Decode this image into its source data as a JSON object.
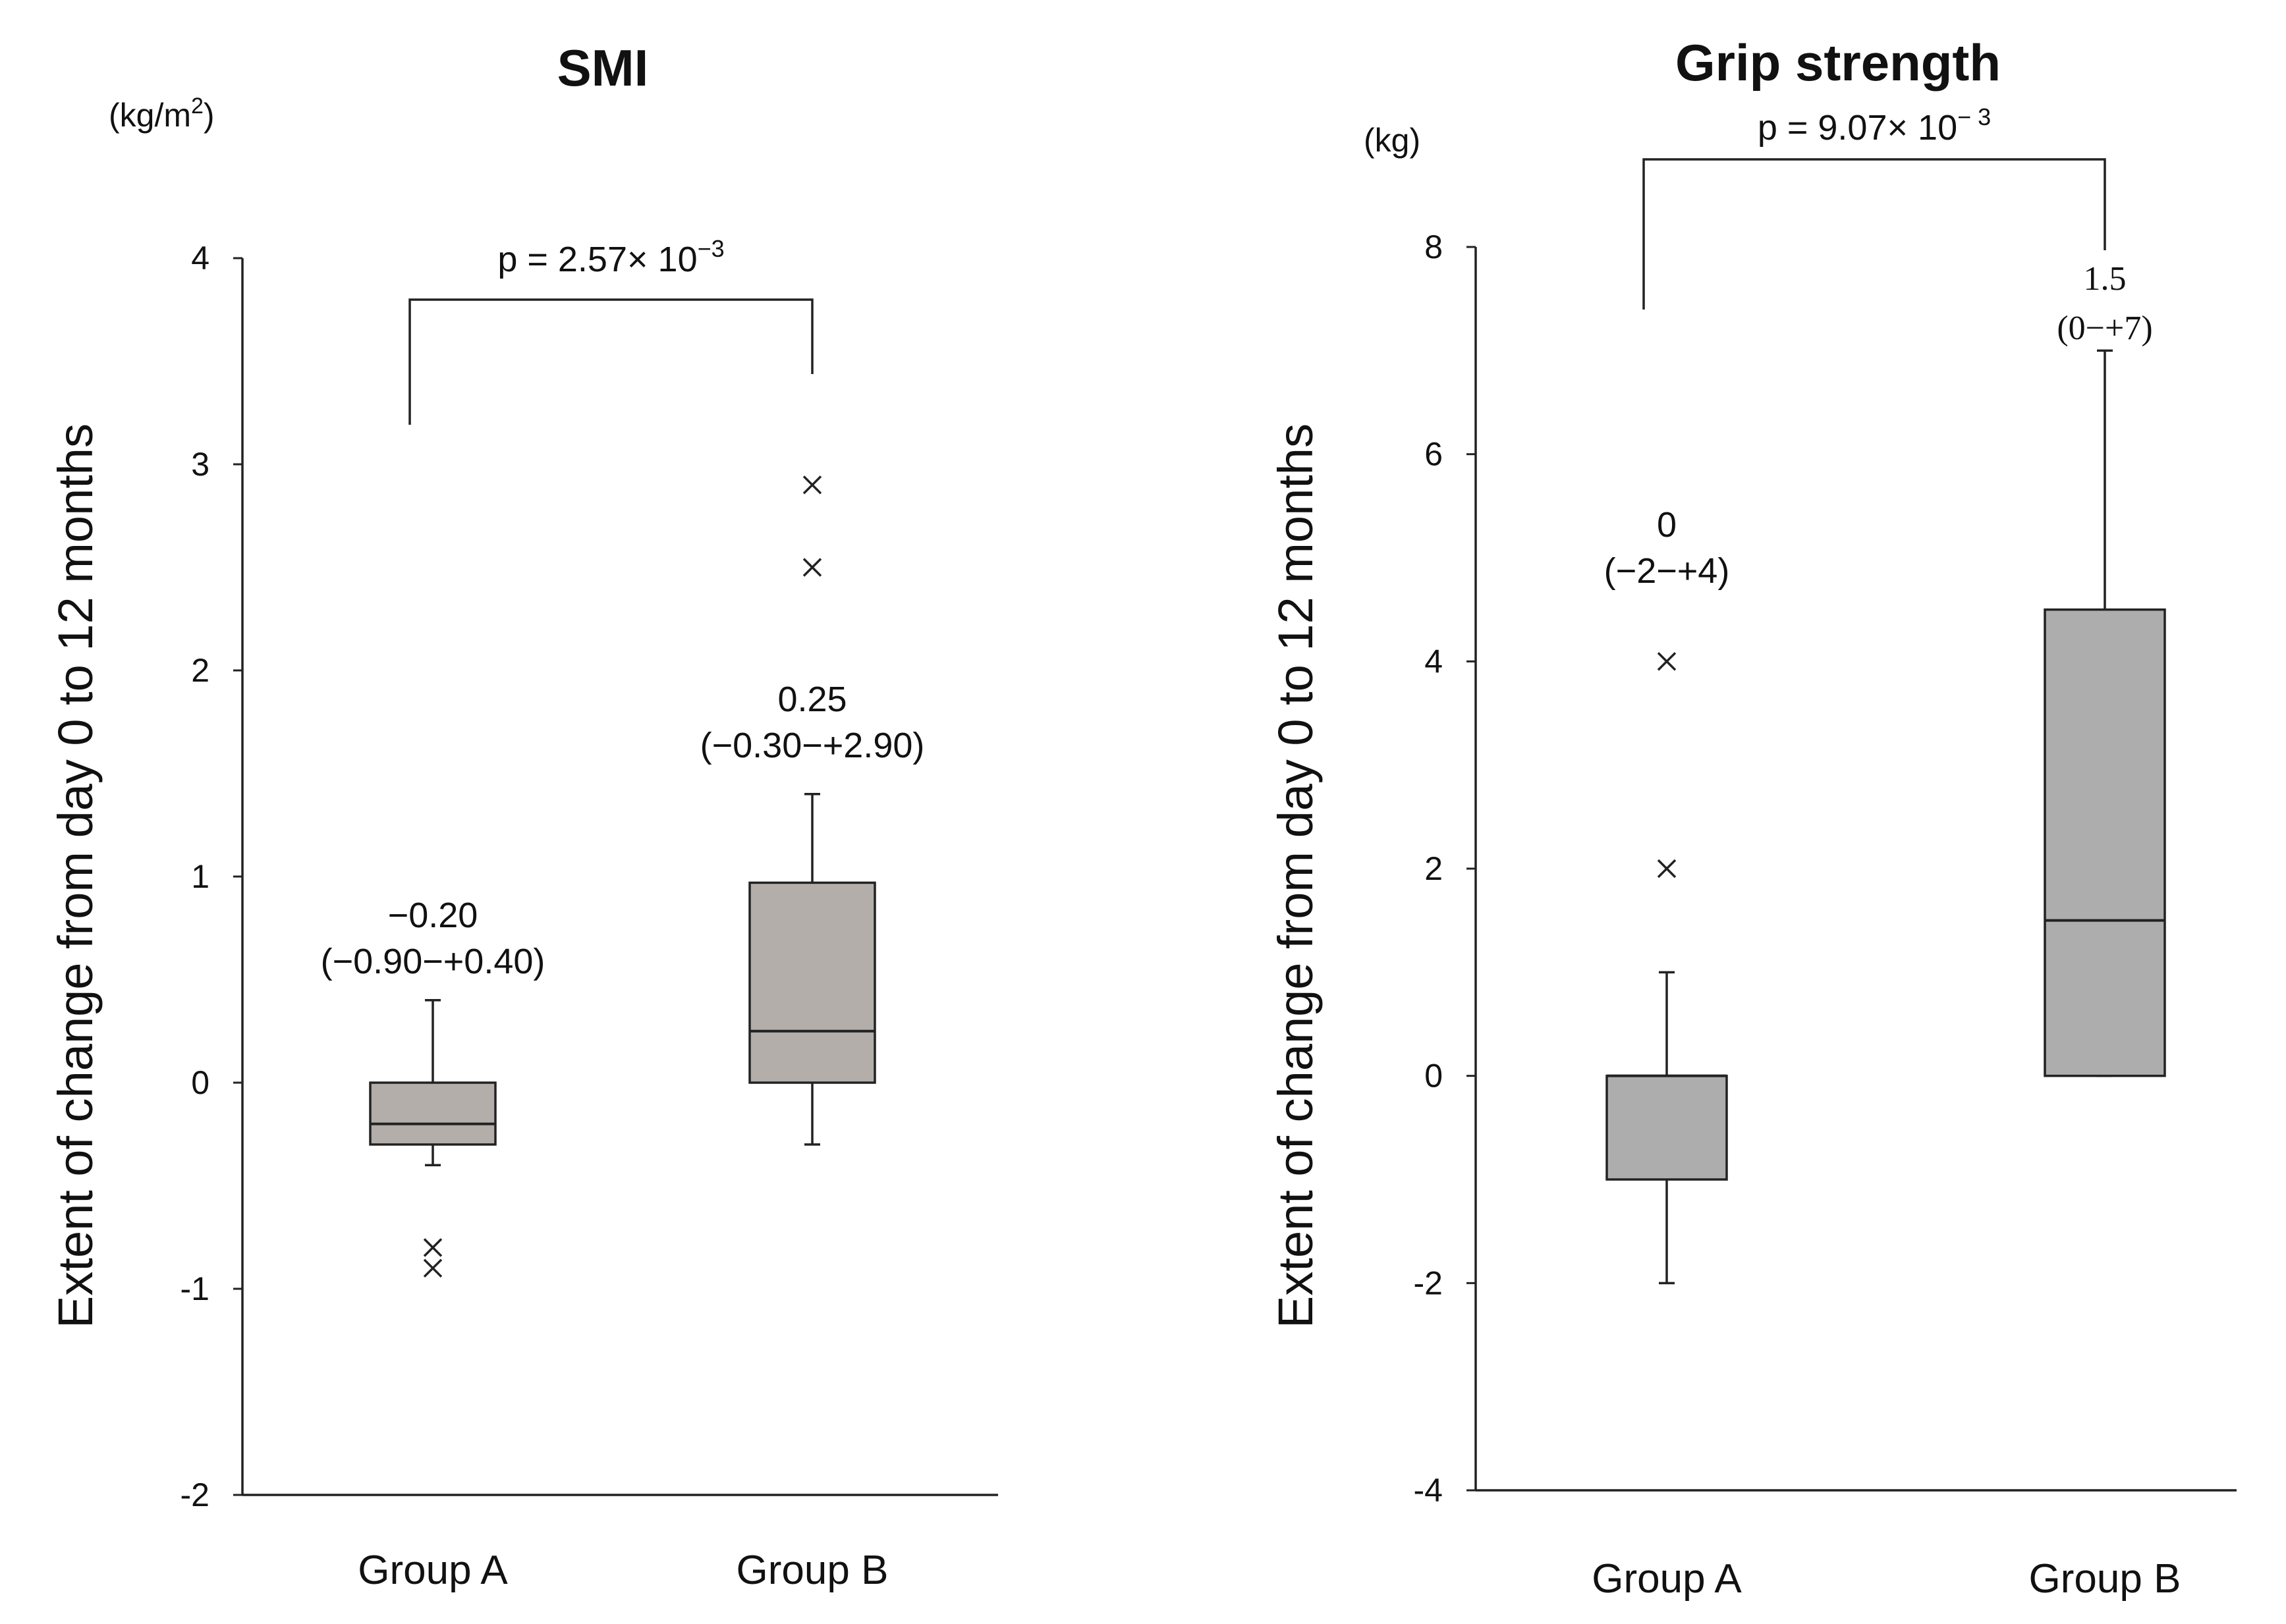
{
  "chart_data": [
    {
      "type": "box",
      "title": "SMI",
      "unit": "(kg/m",
      "unit_sup": "2",
      "unit_close": ")",
      "ylabel": "Extent of change from day 0 to 12 months",
      "ylim": [
        -2,
        4
      ],
      "yticks": [
        -2,
        -1,
        0,
        1,
        2,
        3,
        4
      ],
      "ytick_labels": [
        "-2",
        "-1",
        "0",
        "1",
        "2",
        "3",
        "4"
      ],
      "categories": [
        "Group A",
        "Group B"
      ],
      "box_color": "#b4aeab",
      "p_value": {
        "prefix": "p = 2.57",
        "times": "×",
        "base": " 10",
        "exponent": "−3",
        "from": "Group A",
        "to": "Group B"
      },
      "groups": [
        {
          "name": "Group A",
          "whisker_low": -0.4,
          "q1": -0.3,
          "median": -0.2,
          "q3": 0.0,
          "whisker_high": 0.4,
          "outliers": [
            -0.8,
            -0.9
          ],
          "median_label": "−0.20",
          "range_label": "(−0.90−+0.40)"
        },
        {
          "name": "Group B",
          "whisker_low": -0.3,
          "q1": 0.0,
          "median": 0.25,
          "q3": 0.97,
          "whisker_high": 1.4,
          "outliers": [
            2.5,
            2.9
          ],
          "median_label": "0.25",
          "range_label": "(−0.30−+2.90)"
        }
      ]
    },
    {
      "type": "box",
      "title": "Grip strength",
      "unit": "(kg)",
      "ylabel": "Extent of change from day 0 to 12 months",
      "ylim": [
        -4,
        8
      ],
      "yticks": [
        -4,
        -2,
        0,
        2,
        4,
        6,
        8
      ],
      "ytick_labels": [
        "-4",
        "-2",
        "0",
        "2",
        "4",
        "6",
        "8"
      ],
      "categories": [
        "Group A",
        "Group B"
      ],
      "box_color": "#adadad",
      "p_value": {
        "prefix": "p = 9.07",
        "times": "×",
        "base": " 10",
        "exponent": "−  3",
        "from": "Group A",
        "to": "Group B"
      },
      "groups": [
        {
          "name": "Group A",
          "whisker_low": -2,
          "q1": -1,
          "median": 0,
          "q3": 0,
          "whisker_high": 1,
          "outliers": [
            2,
            4
          ],
          "median_label": "0",
          "range_label": "(−2−+4)"
        },
        {
          "name": "Group B",
          "whisker_low": 0,
          "q1": 0,
          "median": 1.5,
          "q3": 4.5,
          "whisker_high": 7,
          "outliers": [],
          "median_label": "1.5",
          "range_label": "(0−+7)"
        }
      ]
    }
  ]
}
